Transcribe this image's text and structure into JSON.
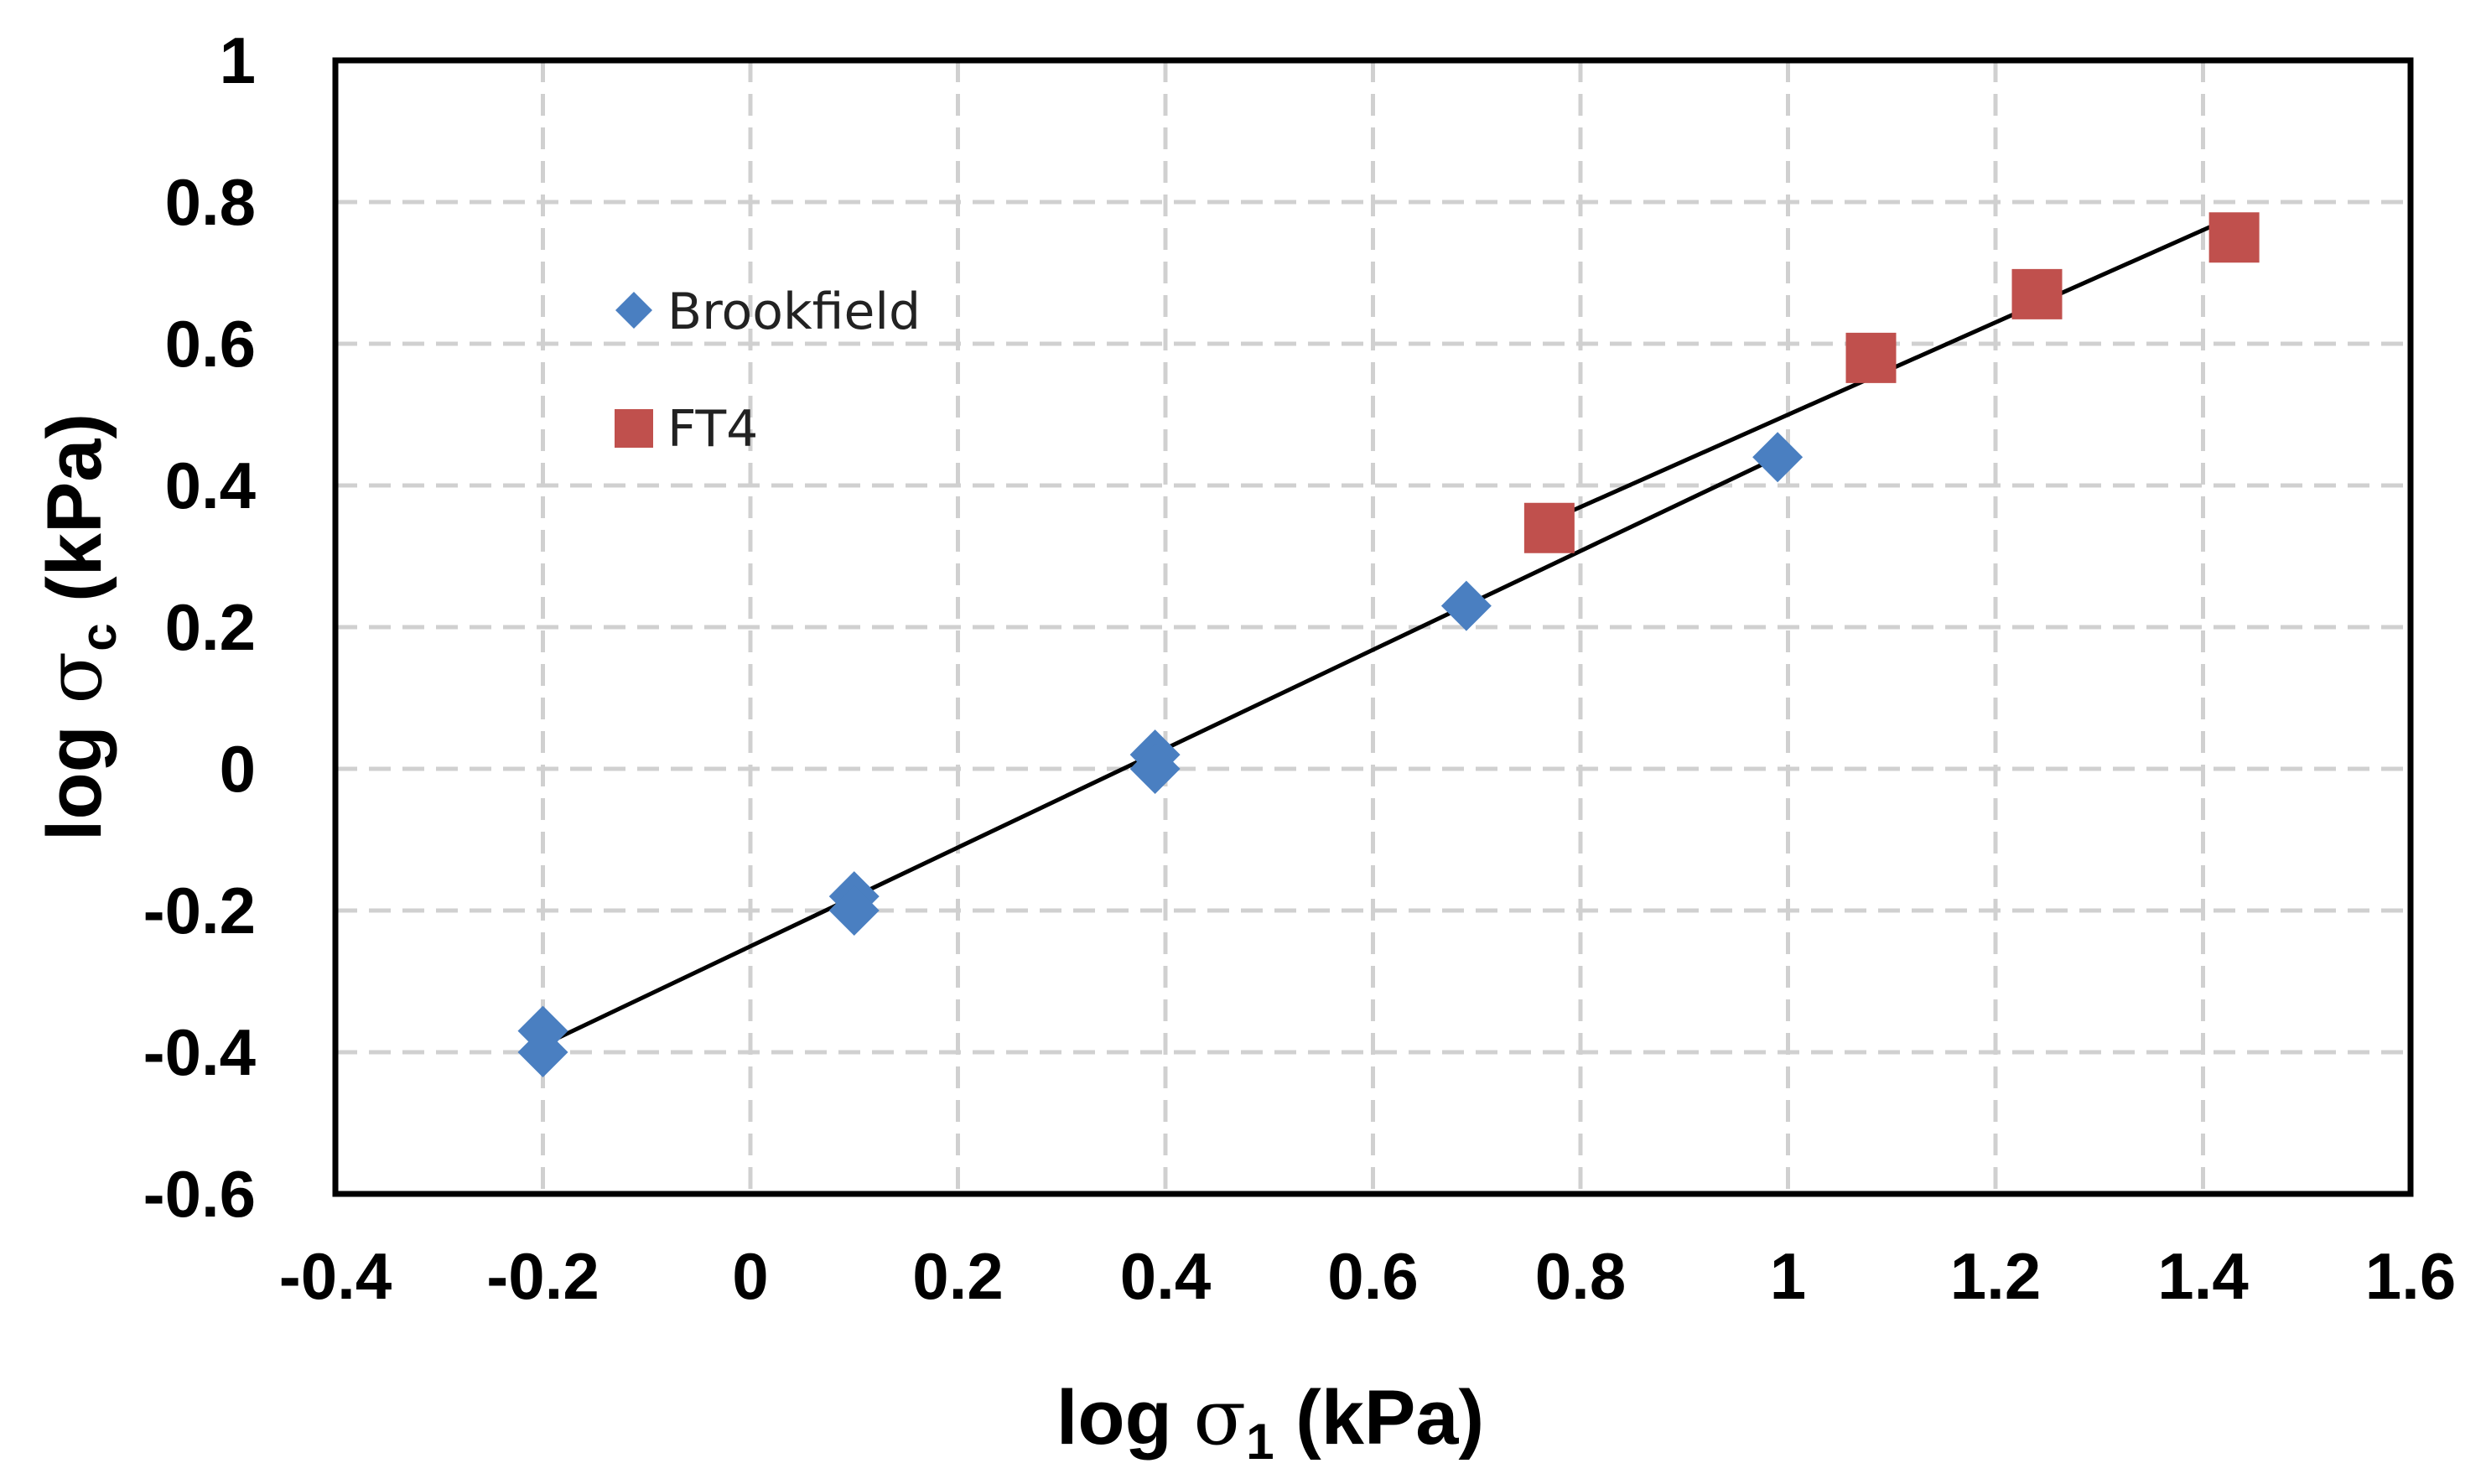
{
  "chart_data": {
    "type": "scatter",
    "title": "",
    "xlabel": {
      "prefix": "log ",
      "symbol": "σ",
      "sub": "1",
      "suffix": " (kPa)"
    },
    "ylabel": {
      "prefix": "log ",
      "symbol": "σ",
      "sub": "c",
      "suffix": " (kPa)"
    },
    "xlim": [
      -0.4,
      1.6
    ],
    "ylim": [
      -0.6,
      1.0
    ],
    "x_ticks": [
      "-0.4",
      "-0.2",
      "0",
      "0.2",
      "0.4",
      "0.6",
      "0.8",
      "1",
      "1.2",
      "1.4",
      "1.6"
    ],
    "y_ticks": [
      "1",
      "0.8",
      "0.6",
      "0.4",
      "0.2",
      "0",
      "-0.2",
      "-0.4",
      "-0.6"
    ],
    "grid": true,
    "legend_position": "top-left",
    "series": [
      {
        "name": "Brookfield",
        "marker": "diamond",
        "color": "#4a7fc1",
        "points": [
          {
            "x": -0.2,
            "y": -0.37
          },
          {
            "x": -0.2,
            "y": -0.4
          },
          {
            "x": 0.1,
            "y": -0.18
          },
          {
            "x": 0.1,
            "y": -0.2
          },
          {
            "x": 0.39,
            "y": 0.02
          },
          {
            "x": 0.39,
            "y": 0.0
          },
          {
            "x": 0.69,
            "y": 0.23
          },
          {
            "x": 0.99,
            "y": 0.44
          }
        ],
        "fit": {
          "x": [
            -0.2,
            0.99
          ],
          "y": [
            -0.39,
            0.44
          ]
        }
      },
      {
        "name": "FT4",
        "marker": "square",
        "color": "#c0504d",
        "points": [
          {
            "x": 0.77,
            "y": 0.34
          },
          {
            "x": 1.08,
            "y": 0.58
          },
          {
            "x": 1.24,
            "y": 0.67
          },
          {
            "x": 1.43,
            "y": 0.75
          }
        ],
        "fit": {
          "x": [
            0.77,
            1.43
          ],
          "y": [
            0.35,
            0.78
          ]
        }
      }
    ]
  }
}
